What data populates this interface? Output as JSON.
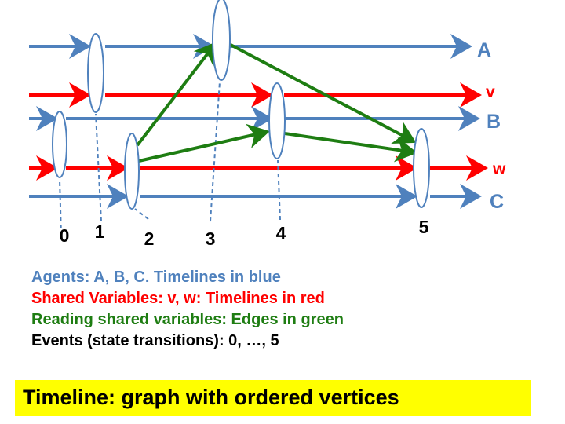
{
  "timelines": [
    {
      "label": "A",
      "kind": "agent"
    },
    {
      "label": "v",
      "kind": "shared-variable"
    },
    {
      "label": "B",
      "kind": "agent"
    },
    {
      "label": "w",
      "kind": "shared-variable"
    },
    {
      "label": "C",
      "kind": "agent"
    }
  ],
  "events": [
    {
      "label": "0"
    },
    {
      "label": "1"
    },
    {
      "label": "2"
    },
    {
      "label": "3"
    },
    {
      "label": "4"
    },
    {
      "label": "5"
    }
  ],
  "edges": [
    {
      "from_event": "2",
      "to_event": "3"
    },
    {
      "from_event": "2",
      "to_event": "4"
    },
    {
      "from_event": "3",
      "to_event": "5"
    },
    {
      "from_event": "4",
      "to_event": "5"
    }
  ],
  "legend": [
    {
      "text": "Agents: A, B, C. Timelines in blue",
      "color": "#4f81bd"
    },
    {
      "text": "Shared Variables: v, w: Timelines in red",
      "color": "#ff0000"
    },
    {
      "text": "Reading shared variables: Edges in green",
      "color": "#1e7d12"
    },
    {
      "text": "Events (state transitions): 0, …, 5",
      "color": "#000000"
    }
  ],
  "banner": {
    "text": "Timeline: graph with ordered vertices",
    "background": "#ffff00"
  },
  "colors": {
    "agent": "#4f81bd",
    "shared": "#ff0000",
    "edge": "#1e7d12",
    "event_outline": "#4f81bd"
  }
}
